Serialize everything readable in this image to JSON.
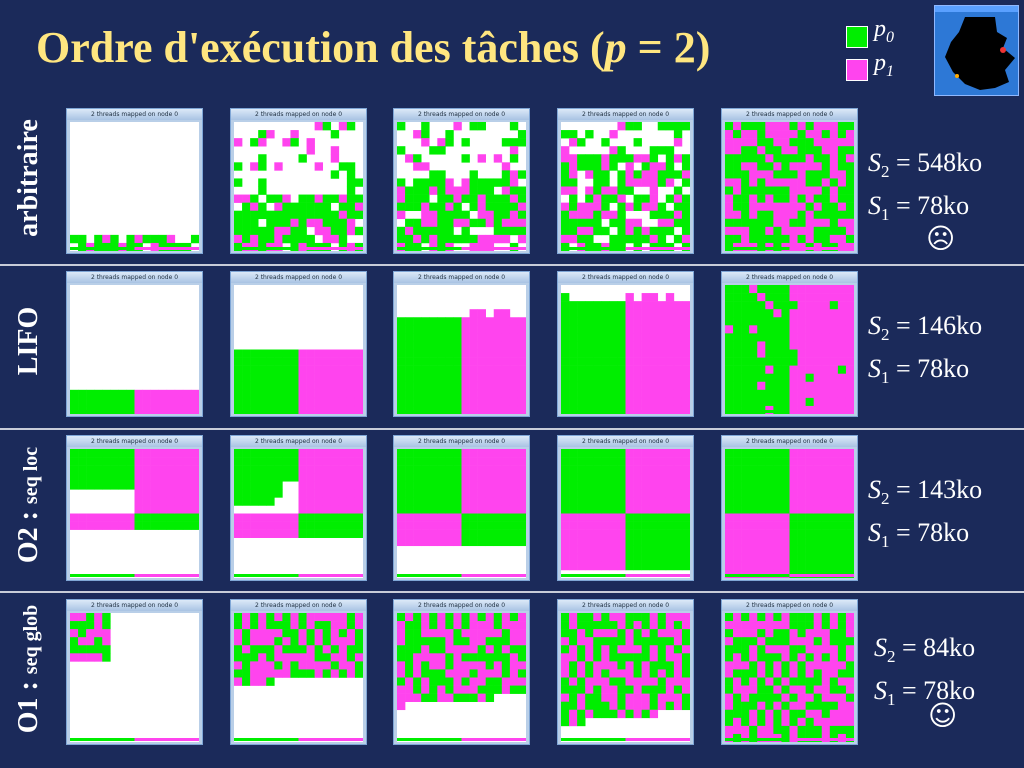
{
  "title": {
    "prefix": "Ordre d'exécution des tâches (",
    "var": "p",
    "suffix": " = 2)"
  },
  "legend": {
    "p0": {
      "label": "p",
      "sub": "0",
      "color": "#00ee00"
    },
    "p1": {
      "label": "p",
      "sub": "1",
      "color": "#ff44ee"
    }
  },
  "panel_caption": "2 threads mapped on node 0",
  "rows": [
    {
      "label": "arbitraire",
      "label_small": "",
      "s2": "548ko",
      "s1": "78ko",
      "smiley": "☹"
    },
    {
      "label": "LIFO",
      "label_small": "",
      "s2": "146ko",
      "s1": "78ko",
      "smiley": ""
    },
    {
      "label": "O2 : ",
      "label_small": "seq loc",
      "s2": "143ko",
      "s1": "78ko",
      "smiley": ""
    },
    {
      "label": "O1 : ",
      "label_small": "seq glob",
      "s2": "84ko",
      "s1": "78ko",
      "smiley": "☺"
    }
  ],
  "stat_symbols": {
    "s": "S",
    "sub2": "2",
    "sub1": "1",
    "eq": " = "
  }
}
